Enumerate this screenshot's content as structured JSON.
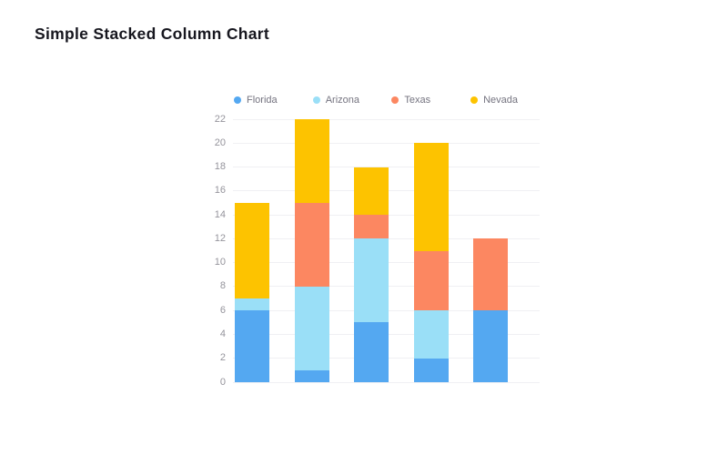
{
  "page": {
    "title": "Simple Stacked Column Chart"
  },
  "chart_data": {
    "type": "bar",
    "stacked": true,
    "title": "Simple Stacked Column Chart",
    "series": [
      {
        "name": "Florida",
        "color": "#54A8F1",
        "values": [
          6,
          1,
          5,
          2,
          6
        ]
      },
      {
        "name": "Arizona",
        "color": "#9ADFF7",
        "values": [
          1,
          7,
          7,
          4,
          0
        ]
      },
      {
        "name": "Texas",
        "color": "#FC8761",
        "values": [
          0,
          7,
          2,
          5,
          6
        ]
      },
      {
        "name": "Nevada",
        "color": "#FDC300",
        "values": [
          8,
          7,
          4,
          9,
          0
        ]
      }
    ],
    "stack_totals": [
      15,
      22,
      18,
      20,
      12
    ],
    "xlabel": "",
    "ylabel": "",
    "ylim": [
      0,
      22
    ],
    "yticks": [
      0,
      2,
      4,
      6,
      8,
      10,
      12,
      14,
      16,
      18,
      20,
      22
    ],
    "grid": true,
    "legend_position": "top",
    "colors": {
      "title_text": "#17171f",
      "legend_text": "#74737f",
      "tick_text": "#95949c",
      "gridline": "#f0f0f3",
      "background": "#ffffff"
    }
  }
}
